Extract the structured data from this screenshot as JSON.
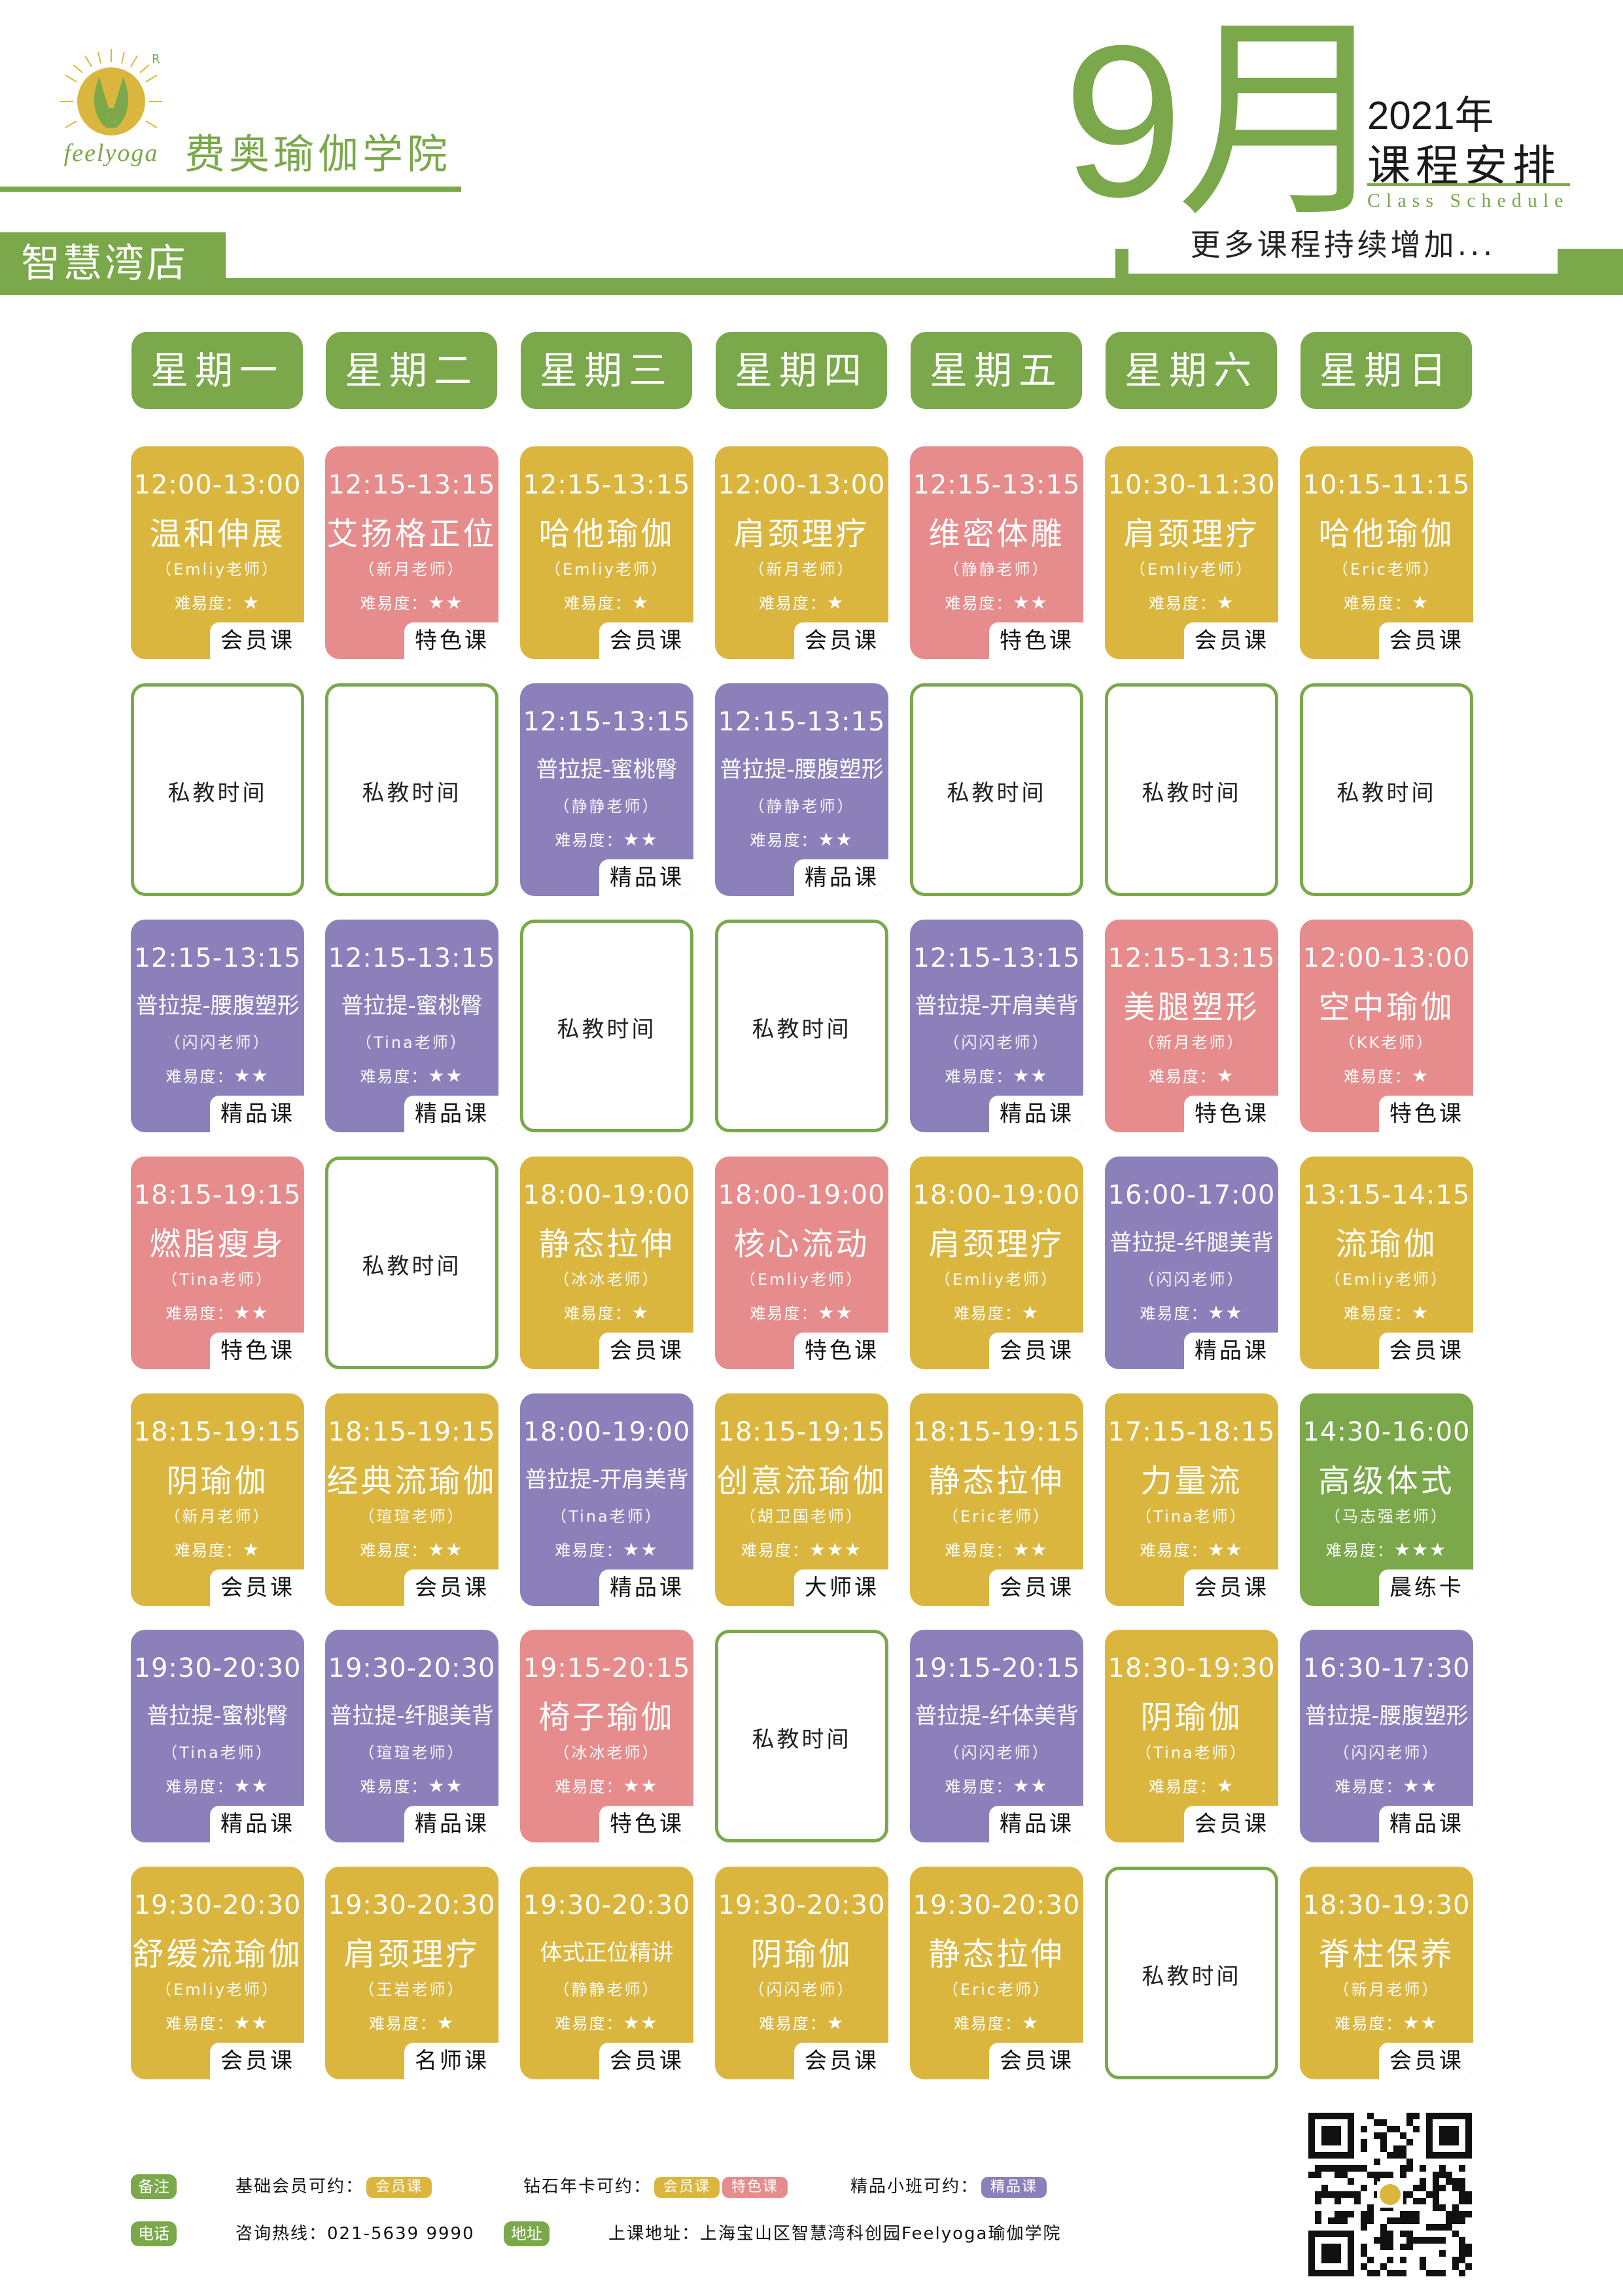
{
  "header": {
    "logo_text": "feelyoga",
    "registered_mark": "R",
    "brand_name": "费奥瑜伽学院",
    "store": "智慧湾店",
    "month": "9月",
    "year": "2021年",
    "schedule_title": "课程安排",
    "schedule_en": "Class Schedule",
    "more_courses": "更多课程持续增加..."
  },
  "colors": {
    "green": "#7aa84a",
    "yellow": "#dbb63f",
    "pink": "#e68c8c",
    "purple": "#8b80ba"
  },
  "days": [
    "星期一",
    "星期二",
    "星期三",
    "星期四",
    "星期五",
    "星期六",
    "星期日"
  ],
  "difficulty_label": "难易度：",
  "private_label": "私教时间",
  "rows": [
    [
      {
        "color": "yellow",
        "time": "12:00-13:00",
        "title": "温和伸展",
        "teacher": "（Emliy老师）",
        "stars": "★",
        "type": "会员课"
      },
      {
        "color": "pink",
        "time": "12:15-13:15",
        "title": "艾扬格正位",
        "teacher": "（新月老师）",
        "stars": "★★",
        "type": "特色课"
      },
      {
        "color": "yellow",
        "time": "12:15-13:15",
        "title": "哈他瑜伽",
        "teacher": "（Emliy老师）",
        "stars": "★",
        "type": "会员课"
      },
      {
        "color": "yellow",
        "time": "12:00-13:00",
        "title": "肩颈理疗",
        "teacher": "（新月老师）",
        "stars": "★",
        "type": "会员课"
      },
      {
        "color": "pink",
        "time": "12:15-13:15",
        "title": "维密体雕",
        "teacher": "（静静老师）",
        "stars": "★★",
        "type": "特色课"
      },
      {
        "color": "yellow",
        "time": "10:30-11:30",
        "title": "肩颈理疗",
        "teacher": "（Emliy老师）",
        "stars": "★",
        "type": "会员课"
      },
      {
        "color": "yellow",
        "time": "10:15-11:15",
        "title": "哈他瑜伽",
        "teacher": "（Eric老师）",
        "stars": "★",
        "type": "会员课"
      }
    ],
    [
      {
        "color": "private"
      },
      {
        "color": "private"
      },
      {
        "color": "purple",
        "time": "12:15-13:15",
        "title": "普拉提-蜜桃臀",
        "teacher": "（静静老师）",
        "stars": "★★",
        "type": "精品课",
        "small": true
      },
      {
        "color": "purple",
        "time": "12:15-13:15",
        "title": "普拉提-腰腹塑形",
        "teacher": "（静静老师）",
        "stars": "★★",
        "type": "精品课",
        "small": true
      },
      {
        "color": "private"
      },
      {
        "color": "private"
      },
      {
        "color": "private"
      }
    ],
    [
      {
        "color": "purple",
        "time": "12:15-13:15",
        "title": "普拉提-腰腹塑形",
        "teacher": "（闪闪老师）",
        "stars": "★★",
        "type": "精品课",
        "small": true
      },
      {
        "color": "purple",
        "time": "12:15-13:15",
        "title": "普拉提-蜜桃臀",
        "teacher": "（Tina老师）",
        "stars": "★★",
        "type": "精品课",
        "small": true
      },
      {
        "color": "private"
      },
      {
        "color": "private"
      },
      {
        "color": "purple",
        "time": "12:15-13:15",
        "title": "普拉提-开肩美背",
        "teacher": "（闪闪老师）",
        "stars": "★★",
        "type": "精品课",
        "small": true
      },
      {
        "color": "pink",
        "time": "12:15-13:15",
        "title": "美腿塑形",
        "teacher": "（新月老师）",
        "stars": "★",
        "type": "特色课"
      },
      {
        "color": "pink",
        "time": "12:00-13:00",
        "title": "空中瑜伽",
        "teacher": "（KK老师）",
        "stars": "★",
        "type": "特色课"
      }
    ],
    [
      {
        "color": "pink",
        "time": "18:15-19:15",
        "title": "燃脂瘦身",
        "teacher": "（Tina老师）",
        "stars": "★★",
        "type": "特色课"
      },
      {
        "color": "private"
      },
      {
        "color": "yellow",
        "time": "18:00-19:00",
        "title": "静态拉伸",
        "teacher": "（冰冰老师）",
        "stars": "★",
        "type": "会员课"
      },
      {
        "color": "pink",
        "time": "18:00-19:00",
        "title": "核心流动",
        "teacher": "（Emliy老师）",
        "stars": "★★",
        "type": "特色课"
      },
      {
        "color": "yellow",
        "time": "18:00-19:00",
        "title": "肩颈理疗",
        "teacher": "（Emliy老师）",
        "stars": "★",
        "type": "会员课"
      },
      {
        "color": "purple",
        "time": "16:00-17:00",
        "title": "普拉提-纤腿美背",
        "teacher": "（闪闪老师）",
        "stars": "★★",
        "type": "精品课",
        "small": true
      },
      {
        "color": "yellow",
        "time": "13:15-14:15",
        "title": "流瑜伽",
        "teacher": "（Emliy老师）",
        "stars": "★",
        "type": "会员课"
      }
    ],
    [
      {
        "color": "yellow",
        "time": "18:15-19:15",
        "title": "阴瑜伽",
        "teacher": "（新月老师）",
        "stars": "★",
        "type": "会员课"
      },
      {
        "color": "yellow",
        "time": "18:15-19:15",
        "title": "经典流瑜伽",
        "teacher": "（瑄瑄老师）",
        "stars": "★★",
        "type": "会员课"
      },
      {
        "color": "purple",
        "time": "18:00-19:00",
        "title": "普拉提-开肩美背",
        "teacher": "（Tina老师）",
        "stars": "★★",
        "type": "精品课",
        "small": true
      },
      {
        "color": "yellow",
        "time": "18:15-19:15",
        "title": "创意流瑜伽",
        "teacher": "（胡卫国老师）",
        "stars": "★★★",
        "type": "大师课"
      },
      {
        "color": "yellow",
        "time": "18:15-19:15",
        "title": "静态拉伸",
        "teacher": "（Eric老师）",
        "stars": "★★",
        "type": "会员课"
      },
      {
        "color": "yellow",
        "time": "17:15-18:15",
        "title": "力量流",
        "teacher": "（Tina老师）",
        "stars": "★★",
        "type": "会员课"
      },
      {
        "color": "green",
        "time": "14:30-16:00",
        "title": "高级体式",
        "teacher": "（马志强老师）",
        "stars": "★★★",
        "type": "晨练卡"
      }
    ],
    [
      {
        "color": "purple",
        "time": "19:30-20:30",
        "title": "普拉提-蜜桃臀",
        "teacher": "（Tina老师）",
        "stars": "★★",
        "type": "精品课",
        "small": true
      },
      {
        "color": "purple",
        "time": "19:30-20:30",
        "title": "普拉提-纤腿美背",
        "teacher": "（瑄瑄老师）",
        "stars": "★★",
        "type": "精品课",
        "small": true
      },
      {
        "color": "pink",
        "time": "19:15-20:15",
        "title": "椅子瑜伽",
        "teacher": "（冰冰老师）",
        "stars": "★★",
        "type": "特色课"
      },
      {
        "color": "private"
      },
      {
        "color": "purple",
        "time": "19:15-20:15",
        "title": "普拉提-纤体美背",
        "teacher": "（闪闪老师）",
        "stars": "★★",
        "type": "精品课",
        "small": true
      },
      {
        "color": "yellow",
        "time": "18:30-19:30",
        "title": "阴瑜伽",
        "teacher": "（Tina老师）",
        "stars": "★",
        "type": "会员课"
      },
      {
        "color": "purple",
        "time": "16:30-17:30",
        "title": "普拉提-腰腹塑形",
        "teacher": "（闪闪老师）",
        "stars": "★★",
        "type": "精品课",
        "small": true
      }
    ],
    [
      {
        "color": "yellow",
        "time": "19:30-20:30",
        "title": "舒缓流瑜伽",
        "teacher": "（Emliy老师）",
        "stars": "★★",
        "type": "会员课"
      },
      {
        "color": "yellow",
        "time": "19:30-20:30",
        "title": "肩颈理疗",
        "teacher": "（王岩老师）",
        "stars": "★",
        "type": "名师课"
      },
      {
        "color": "yellow",
        "time": "19:30-20:30",
        "title": "体式正位精讲",
        "teacher": "（静静老师）",
        "stars": "★★",
        "type": "会员课",
        "small": true
      },
      {
        "color": "yellow",
        "time": "19:30-20:30",
        "title": "阴瑜伽",
        "teacher": "（闪闪老师）",
        "stars": "★",
        "type": "会员课"
      },
      {
        "color": "yellow",
        "time": "19:30-20:30",
        "title": "静态拉伸",
        "teacher": "（Eric老师）",
        "stars": "★",
        "type": "会员课"
      },
      {
        "color": "private"
      },
      {
        "color": "yellow",
        "time": "18:30-19:30",
        "title": "脊柱保养",
        "teacher": "（新月老师）",
        "stars": "★★",
        "type": "会员课"
      }
    ]
  ],
  "footer": {
    "note_tag": "备注",
    "basic_label": "基础会员可约：",
    "basic_chip": "会员课",
    "diamond_label": "钻石年卡可约：",
    "diamond_chip1": "会员课",
    "diamond_chip2": "特色课",
    "premium_label": "精品小班可约：",
    "premium_chip": "精品课",
    "phone_tag": "电话",
    "phone_text": "咨询热线：021-5639 9990",
    "address_tag": "地址",
    "address_text": "上课地址：上海宝山区智慧湾科创园Feelyoga瑜伽学院",
    "qr_icon": "qr-code-icon"
  }
}
